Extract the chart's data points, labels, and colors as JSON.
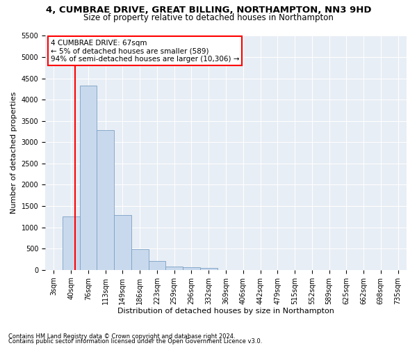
{
  "title1": "4, CUMBRAE DRIVE, GREAT BILLING, NORTHAMPTON, NN3 9HD",
  "title2": "Size of property relative to detached houses in Northampton",
  "xlabel": "Distribution of detached houses by size in Northampton",
  "ylabel": "Number of detached properties",
  "footnote1": "Contains HM Land Registry data © Crown copyright and database right 2024.",
  "footnote2": "Contains public sector information licensed under the Open Government Licence v3.0.",
  "annotation_title": "4 CUMBRAE DRIVE: 67sqm",
  "annotation_line1": "← 5% of detached houses are smaller (589)",
  "annotation_line2": "94% of semi-detached houses are larger (10,306) →",
  "bar_color": "#c9d9ed",
  "bar_edge_color": "#7aa0c4",
  "vline_color": "red",
  "background_color": "#e8eef5",
  "categories": [
    "3sqm",
    "40sqm",
    "76sqm",
    "113sqm",
    "149sqm",
    "186sqm",
    "223sqm",
    "259sqm",
    "296sqm",
    "332sqm",
    "369sqm",
    "406sqm",
    "442sqm",
    "479sqm",
    "515sqm",
    "552sqm",
    "589sqm",
    "625sqm",
    "662sqm",
    "698sqm",
    "735sqm"
  ],
  "values": [
    0,
    1260,
    4330,
    3290,
    1280,
    490,
    210,
    80,
    60,
    50,
    0,
    0,
    0,
    0,
    0,
    0,
    0,
    0,
    0,
    0,
    0
  ],
  "ylim": [
    0,
    5500
  ],
  "yticks": [
    0,
    500,
    1000,
    1500,
    2000,
    2500,
    3000,
    3500,
    4000,
    4500,
    5000,
    5500
  ],
  "title1_fontsize": 9.5,
  "title2_fontsize": 8.5,
  "axis_label_fontsize": 8,
  "tick_fontsize": 7,
  "footnote_fontsize": 6,
  "annotation_fontsize": 7.5
}
